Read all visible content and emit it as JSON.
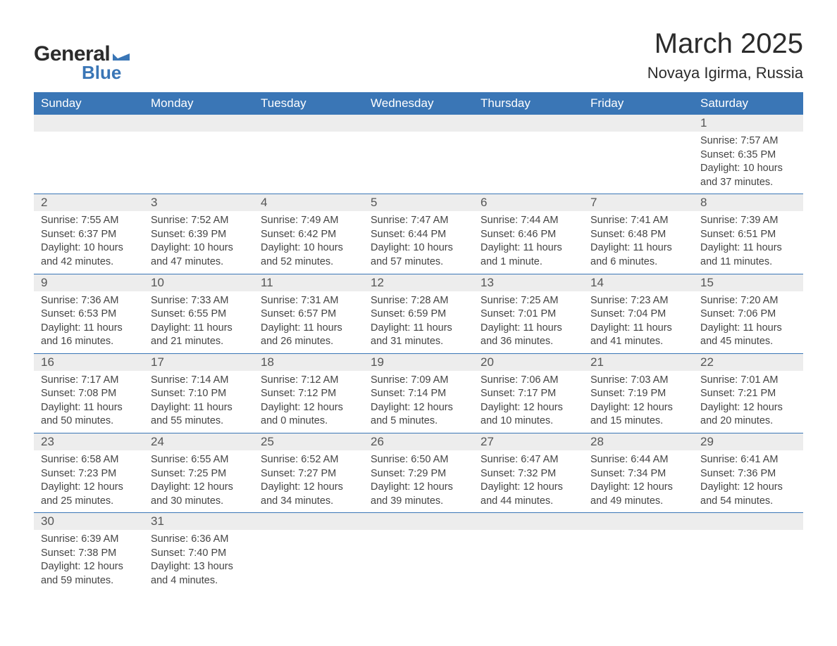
{
  "logo": {
    "text1": "General",
    "text2": "Blue",
    "flag_color": "#3a76b6"
  },
  "title": "March 2025",
  "location": "Novaya Igirma, Russia",
  "colors": {
    "header_bg": "#3a76b6",
    "header_text": "#ffffff",
    "daynum_bg": "#ededed",
    "daynum_text": "#555555",
    "body_text": "#444444",
    "border": "#3a76b6",
    "page_bg": "#ffffff"
  },
  "typography": {
    "title_fontsize": 40,
    "location_fontsize": 22,
    "header_fontsize": 17,
    "daynum_fontsize": 17,
    "body_fontsize": 14.5,
    "font_family": "Arial"
  },
  "layout": {
    "columns": 7,
    "rows": 6
  },
  "weekdays": [
    "Sunday",
    "Monday",
    "Tuesday",
    "Wednesday",
    "Thursday",
    "Friday",
    "Saturday"
  ],
  "weeks": [
    [
      null,
      null,
      null,
      null,
      null,
      null,
      {
        "day": "1",
        "sunrise": "Sunrise: 7:57 AM",
        "sunset": "Sunset: 6:35 PM",
        "daylight1": "Daylight: 10 hours",
        "daylight2": "and 37 minutes."
      }
    ],
    [
      {
        "day": "2",
        "sunrise": "Sunrise: 7:55 AM",
        "sunset": "Sunset: 6:37 PM",
        "daylight1": "Daylight: 10 hours",
        "daylight2": "and 42 minutes."
      },
      {
        "day": "3",
        "sunrise": "Sunrise: 7:52 AM",
        "sunset": "Sunset: 6:39 PM",
        "daylight1": "Daylight: 10 hours",
        "daylight2": "and 47 minutes."
      },
      {
        "day": "4",
        "sunrise": "Sunrise: 7:49 AM",
        "sunset": "Sunset: 6:42 PM",
        "daylight1": "Daylight: 10 hours",
        "daylight2": "and 52 minutes."
      },
      {
        "day": "5",
        "sunrise": "Sunrise: 7:47 AM",
        "sunset": "Sunset: 6:44 PM",
        "daylight1": "Daylight: 10 hours",
        "daylight2": "and 57 minutes."
      },
      {
        "day": "6",
        "sunrise": "Sunrise: 7:44 AM",
        "sunset": "Sunset: 6:46 PM",
        "daylight1": "Daylight: 11 hours",
        "daylight2": "and 1 minute."
      },
      {
        "day": "7",
        "sunrise": "Sunrise: 7:41 AM",
        "sunset": "Sunset: 6:48 PM",
        "daylight1": "Daylight: 11 hours",
        "daylight2": "and 6 minutes."
      },
      {
        "day": "8",
        "sunrise": "Sunrise: 7:39 AM",
        "sunset": "Sunset: 6:51 PM",
        "daylight1": "Daylight: 11 hours",
        "daylight2": "and 11 minutes."
      }
    ],
    [
      {
        "day": "9",
        "sunrise": "Sunrise: 7:36 AM",
        "sunset": "Sunset: 6:53 PM",
        "daylight1": "Daylight: 11 hours",
        "daylight2": "and 16 minutes."
      },
      {
        "day": "10",
        "sunrise": "Sunrise: 7:33 AM",
        "sunset": "Sunset: 6:55 PM",
        "daylight1": "Daylight: 11 hours",
        "daylight2": "and 21 minutes."
      },
      {
        "day": "11",
        "sunrise": "Sunrise: 7:31 AM",
        "sunset": "Sunset: 6:57 PM",
        "daylight1": "Daylight: 11 hours",
        "daylight2": "and 26 minutes."
      },
      {
        "day": "12",
        "sunrise": "Sunrise: 7:28 AM",
        "sunset": "Sunset: 6:59 PM",
        "daylight1": "Daylight: 11 hours",
        "daylight2": "and 31 minutes."
      },
      {
        "day": "13",
        "sunrise": "Sunrise: 7:25 AM",
        "sunset": "Sunset: 7:01 PM",
        "daylight1": "Daylight: 11 hours",
        "daylight2": "and 36 minutes."
      },
      {
        "day": "14",
        "sunrise": "Sunrise: 7:23 AM",
        "sunset": "Sunset: 7:04 PM",
        "daylight1": "Daylight: 11 hours",
        "daylight2": "and 41 minutes."
      },
      {
        "day": "15",
        "sunrise": "Sunrise: 7:20 AM",
        "sunset": "Sunset: 7:06 PM",
        "daylight1": "Daylight: 11 hours",
        "daylight2": "and 45 minutes."
      }
    ],
    [
      {
        "day": "16",
        "sunrise": "Sunrise: 7:17 AM",
        "sunset": "Sunset: 7:08 PM",
        "daylight1": "Daylight: 11 hours",
        "daylight2": "and 50 minutes."
      },
      {
        "day": "17",
        "sunrise": "Sunrise: 7:14 AM",
        "sunset": "Sunset: 7:10 PM",
        "daylight1": "Daylight: 11 hours",
        "daylight2": "and 55 minutes."
      },
      {
        "day": "18",
        "sunrise": "Sunrise: 7:12 AM",
        "sunset": "Sunset: 7:12 PM",
        "daylight1": "Daylight: 12 hours",
        "daylight2": "and 0 minutes."
      },
      {
        "day": "19",
        "sunrise": "Sunrise: 7:09 AM",
        "sunset": "Sunset: 7:14 PM",
        "daylight1": "Daylight: 12 hours",
        "daylight2": "and 5 minutes."
      },
      {
        "day": "20",
        "sunrise": "Sunrise: 7:06 AM",
        "sunset": "Sunset: 7:17 PM",
        "daylight1": "Daylight: 12 hours",
        "daylight2": "and 10 minutes."
      },
      {
        "day": "21",
        "sunrise": "Sunrise: 7:03 AM",
        "sunset": "Sunset: 7:19 PM",
        "daylight1": "Daylight: 12 hours",
        "daylight2": "and 15 minutes."
      },
      {
        "day": "22",
        "sunrise": "Sunrise: 7:01 AM",
        "sunset": "Sunset: 7:21 PM",
        "daylight1": "Daylight: 12 hours",
        "daylight2": "and 20 minutes."
      }
    ],
    [
      {
        "day": "23",
        "sunrise": "Sunrise: 6:58 AM",
        "sunset": "Sunset: 7:23 PM",
        "daylight1": "Daylight: 12 hours",
        "daylight2": "and 25 minutes."
      },
      {
        "day": "24",
        "sunrise": "Sunrise: 6:55 AM",
        "sunset": "Sunset: 7:25 PM",
        "daylight1": "Daylight: 12 hours",
        "daylight2": "and 30 minutes."
      },
      {
        "day": "25",
        "sunrise": "Sunrise: 6:52 AM",
        "sunset": "Sunset: 7:27 PM",
        "daylight1": "Daylight: 12 hours",
        "daylight2": "and 34 minutes."
      },
      {
        "day": "26",
        "sunrise": "Sunrise: 6:50 AM",
        "sunset": "Sunset: 7:29 PM",
        "daylight1": "Daylight: 12 hours",
        "daylight2": "and 39 minutes."
      },
      {
        "day": "27",
        "sunrise": "Sunrise: 6:47 AM",
        "sunset": "Sunset: 7:32 PM",
        "daylight1": "Daylight: 12 hours",
        "daylight2": "and 44 minutes."
      },
      {
        "day": "28",
        "sunrise": "Sunrise: 6:44 AM",
        "sunset": "Sunset: 7:34 PM",
        "daylight1": "Daylight: 12 hours",
        "daylight2": "and 49 minutes."
      },
      {
        "day": "29",
        "sunrise": "Sunrise: 6:41 AM",
        "sunset": "Sunset: 7:36 PM",
        "daylight1": "Daylight: 12 hours",
        "daylight2": "and 54 minutes."
      }
    ],
    [
      {
        "day": "30",
        "sunrise": "Sunrise: 6:39 AM",
        "sunset": "Sunset: 7:38 PM",
        "daylight1": "Daylight: 12 hours",
        "daylight2": "and 59 minutes."
      },
      {
        "day": "31",
        "sunrise": "Sunrise: 6:36 AM",
        "sunset": "Sunset: 7:40 PM",
        "daylight1": "Daylight: 13 hours",
        "daylight2": "and 4 minutes."
      },
      null,
      null,
      null,
      null,
      null
    ]
  ]
}
